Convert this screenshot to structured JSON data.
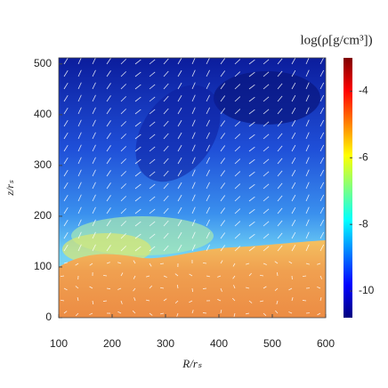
{
  "chart_data": {
    "type": "heatmap",
    "title": "log(ρ[g/cm³])",
    "xlabel": "R/rₛ",
    "ylabel": "z/rₛ",
    "xlim": [
      100,
      600
    ],
    "xticks": [
      100,
      200,
      300,
      400,
      500,
      600
    ],
    "ylim": [
      0,
      512
    ],
    "yticks": [
      0,
      100,
      200,
      300,
      400,
      500
    ],
    "colormap": "jet",
    "clim": [
      -10.8,
      -3
    ],
    "cticks": [
      -4,
      -6,
      -8,
      -10
    ]
  }
}
